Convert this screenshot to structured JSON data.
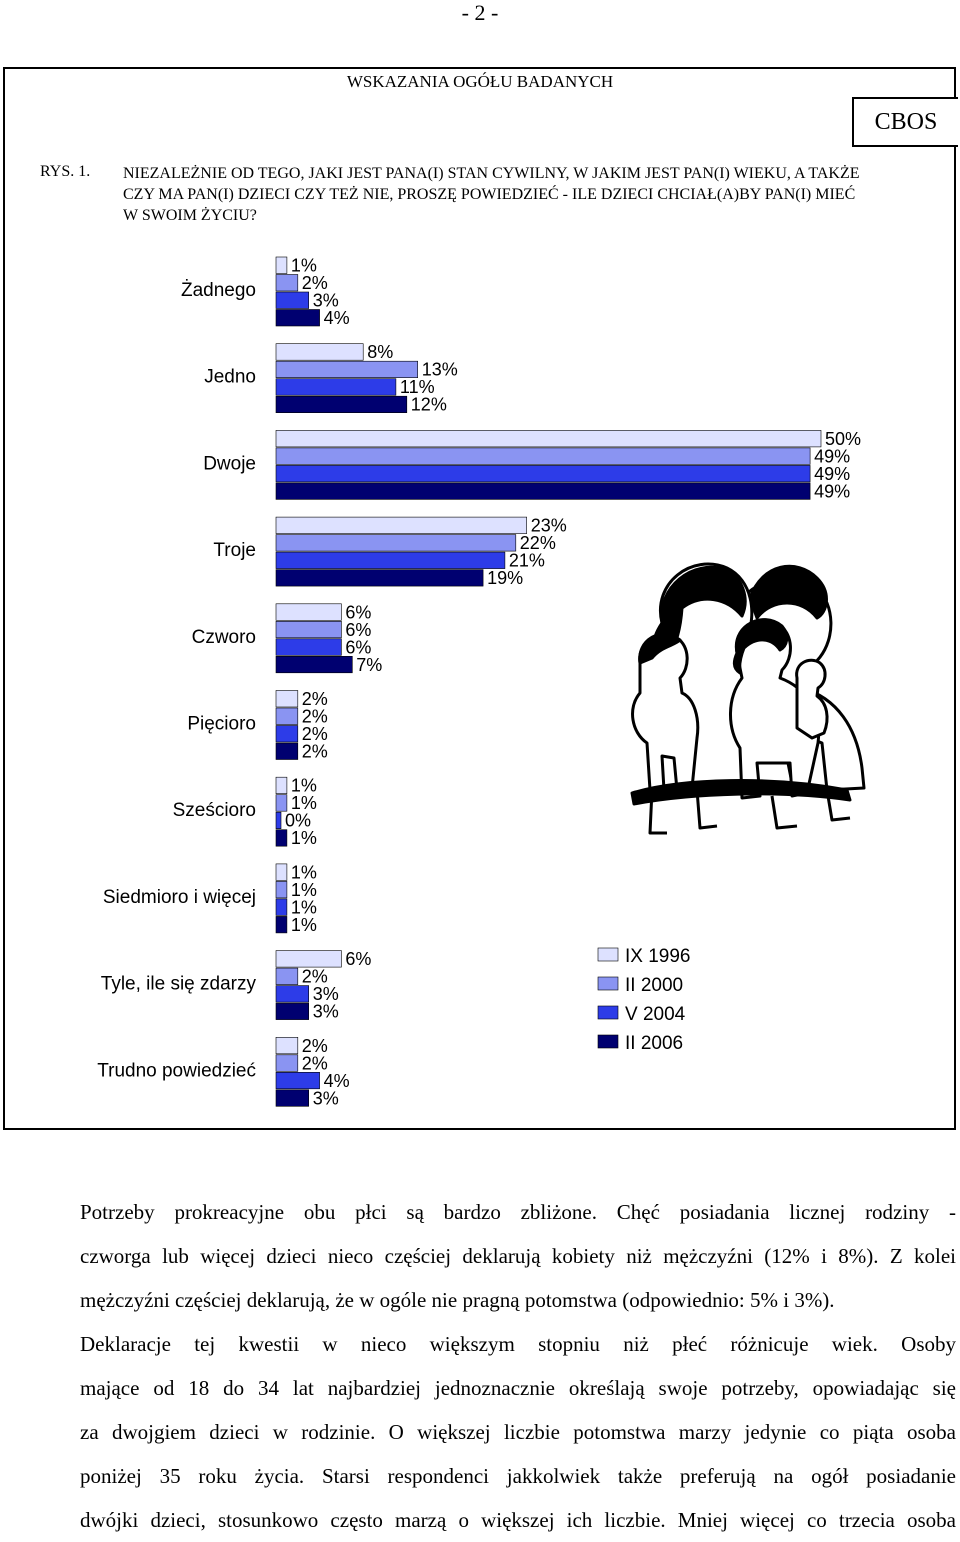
{
  "page": {
    "number": "- 2 -",
    "subtitle": "WSKAZANIA OGÓŁU BADANYCH",
    "brand": "CBOS",
    "figure_label": "RYS. 1.",
    "question": "NIEZALEŻNIE OD TEGO, JAKI JEST PANA(I) STAN CYWILNY, W JAKIM JEST PAN(I) WIEKU, A TAKŻE CZY MA PAN(I) DZIECI CZY TEŻ NIE, PROSZĘ POWIEDZIEĆ - ILE DZIECI CHCIAŁ(A)BY PAN(I) MIEĆ W SWOIM ŻYCIU?"
  },
  "chart_data": {
    "type": "bar",
    "orientation": "horizontal",
    "categories": [
      "Żadnego",
      "Jedno",
      "Dwoje",
      "Troje",
      "Czworo",
      "Pięcioro",
      "Sześcioro",
      "Siedmioro i więcej",
      "Tyle, ile się zdarzy",
      "Trudno powiedzieć"
    ],
    "series": [
      {
        "name": "IX 1996",
        "color": "#dde1ff",
        "values": [
          1,
          8,
          50,
          23,
          6,
          2,
          1,
          1,
          6,
          2
        ]
      },
      {
        "name": "II 2000",
        "color": "#8a94f2",
        "values": [
          2,
          13,
          49,
          22,
          6,
          2,
          1,
          1,
          2,
          2
        ]
      },
      {
        "name": "V 2004",
        "color": "#2d3ce8",
        "values": [
          3,
          11,
          49,
          21,
          6,
          2,
          0,
          1,
          3,
          4
        ]
      },
      {
        "name": "II 2006",
        "color": "#000070",
        "values": [
          4,
          12,
          49,
          19,
          7,
          2,
          1,
          1,
          3,
          3
        ]
      }
    ],
    "value_suffix": "%",
    "legend_position": "right",
    "grid": false
  },
  "illustration": {
    "icon": "family-illustration-icon"
  },
  "body": {
    "p1": [
      "Potrzeby prokreacyjne obu płci są bardzo zbliżone. Chęć posiadania licznej rodziny -",
      "czworga lub więcej dzieci nieco częściej deklarują kobiety niż mężczyźni (12% i 8%). Z kolei",
      "mężczyźni częściej deklarują, że w ogóle nie pragną potomstwa (odpowiednio: 5% i 3%)."
    ],
    "p2": [
      "Deklaracje tej kwestii w nieco większym stopniu niż płeć różnicuje wiek. Osoby",
      "mające od 18 do 34 lat najbardziej jednoznacznie określają swoje potrzeby, opowiadając się",
      "za dwojgiem dzieci w rodzinie. O większej liczbie potomstwa marzy jedynie co piąta osoba",
      "poniżej 35 roku życia. Starsi respondenci jakkolwiek także preferują na ogół posiadanie",
      "dwójki dzieci, stosunkowo często marzą o większej ich liczbie. Mniej więcej co trzecia osoba"
    ]
  }
}
